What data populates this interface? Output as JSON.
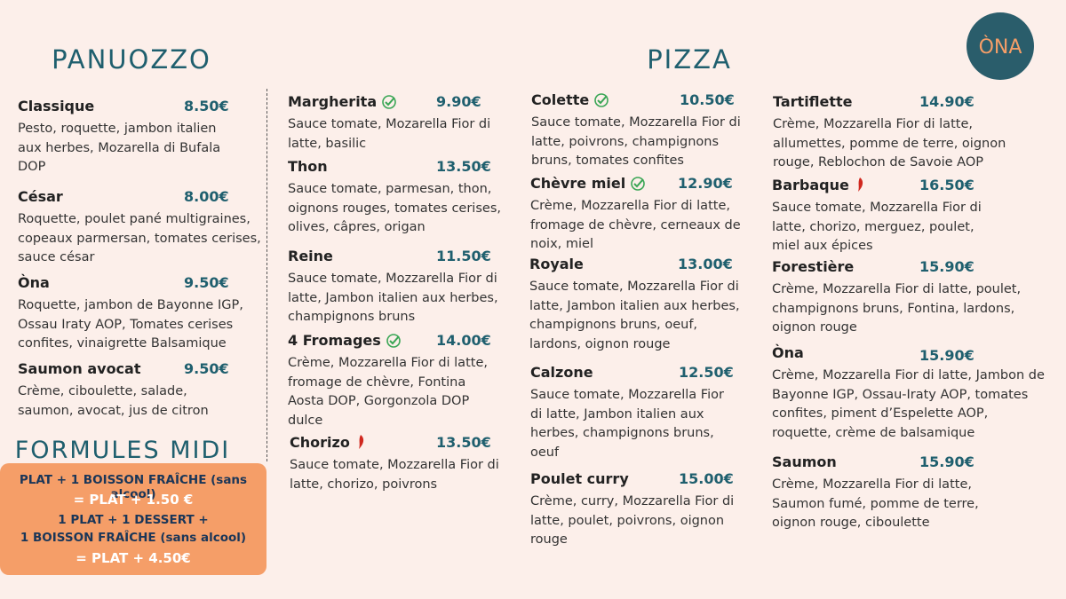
{
  "logo": "ÒNA",
  "panuozzo": {
    "title": "PANUOZZO",
    "items": [
      {
        "name": "Classique",
        "price": "8.50€",
        "description": "Pesto, roquette, jambon italien aux herbes, Mozarella di Bufala DOP"
      },
      {
        "name": "César",
        "price": "8.00€",
        "description": "Roquette, poulet pané multigraines, copeaux parmersan, tomates cerises, sauce césar"
      },
      {
        "name": "Òna",
        "price": "9.50€",
        "description": "Roquette, jambon de Bayonne IGP, Ossau Iraty AOP, Tomates cerises confites, vinaigrette Balsamique"
      },
      {
        "name": "Saumon avocat",
        "price": "9.50€",
        "description": "Crème, ciboulette, salade, saumon, avocat, jus de citron"
      }
    ]
  },
  "formules": {
    "title": "FORMULES MIDI",
    "lines": [
      "PLAT  + 1 BOISSON FRAÎCHE (sans alcool)",
      "= PLAT + 1.50 €",
      "1 PLAT + 1 DESSERT +",
      "1 BOISSON FRAÎCHE (sans alcool)",
      "= PLAT + 4.50€"
    ]
  },
  "pizza": {
    "title": "PIZZA",
    "columns": [
      {
        "items": [
          {
            "name": "Margherita",
            "price": "9.90€",
            "description": "Sauce tomate, Mozarella Fior di latte, basilic"
          },
          {
            "name": "Thon",
            "price": "13.50€",
            "description": "Sauce tomate, parmesan, thon, oignons rouges, tomates cerises, olives, câpres, origan"
          },
          {
            "name": "Reine",
            "price": "11.50€",
            "description": "Sauce tomate, Mozzarella Fior di latte, Jambon italien aux herbes, champignons bruns"
          },
          {
            "name": "4 Fromages",
            "price": "14.00€",
            "description": "Crème, Mozzarella Fior di latte, fromage de chèvre, Fontina Aosta DOP, Gorgonzola DOP dulce"
          },
          {
            "name": "Chorizo",
            "price": "13.50€",
            "description": "Sauce tomate, Mozzarella Fior di latte, chorizo, poivrons"
          }
        ]
      },
      {
        "items": [
          {
            "name": "Colette",
            "price": "10.50€",
            "description": "Sauce tomate, Mozzarella Fior di latte, poivrons, champignons bruns, tomates confites"
          },
          {
            "name": "Chèvre miel",
            "price": "12.90€",
            "description": "Crème, Mozzarella Fior di latte, fromage de chèvre, cerneaux de noix, miel"
          },
          {
            "name": "Royale",
            "price": "13.00€",
            "description": "Sauce tomate, Mozzarella Fior di latte, Jambon italien aux herbes, champignons bruns, oeuf, lardons, oignon rouge"
          },
          {
            "name": "Calzone",
            "price": "12.50€",
            "description": "Sauce tomate, Mozzarella Fior di latte, Jambon italien aux herbes, champignons bruns, oeuf"
          },
          {
            "name": "Poulet curry",
            "price": "15.00€",
            "description": "Crème, curry, Mozzarella Fior di latte, poulet, poivrons, oignon rouge"
          }
        ]
      },
      {
        "items": [
          {
            "name": "Tartiflette",
            "price": "14.90€",
            "description": "Crème, Mozzarella Fior di latte, allumettes, pomme de terre, oignon rouge, Reblochon de Savoie AOP"
          },
          {
            "name": "Barbaque",
            "price": "16.50€",
            "description": "Sauce tomate, Mozzarella Fior di latte, chorizo, merguez, poulet, miel aux épices"
          },
          {
            "name": "Forestière",
            "price": "15.90€",
            "description": "Crème, Mozzarella Fior di latte, poulet, champignons bruns, Fontina, lardons, oignon rouge"
          },
          {
            "name": "Òna",
            "price": "15.90€",
            "description": "Crème, Mozzarella Fior di latte, Jambon de Bayonne IGP, Ossau-Iraty AOP, tomates confites, piment d’Espelette AOP, roquette, crème de balsamique"
          },
          {
            "name": "Saumon",
            "price": "15.90€",
            "description": "Crème, Mozzarella Fior di latte, Saumon fumé, pomme de terre, oignon rouge, ciboulette"
          }
        ]
      }
    ]
  }
}
